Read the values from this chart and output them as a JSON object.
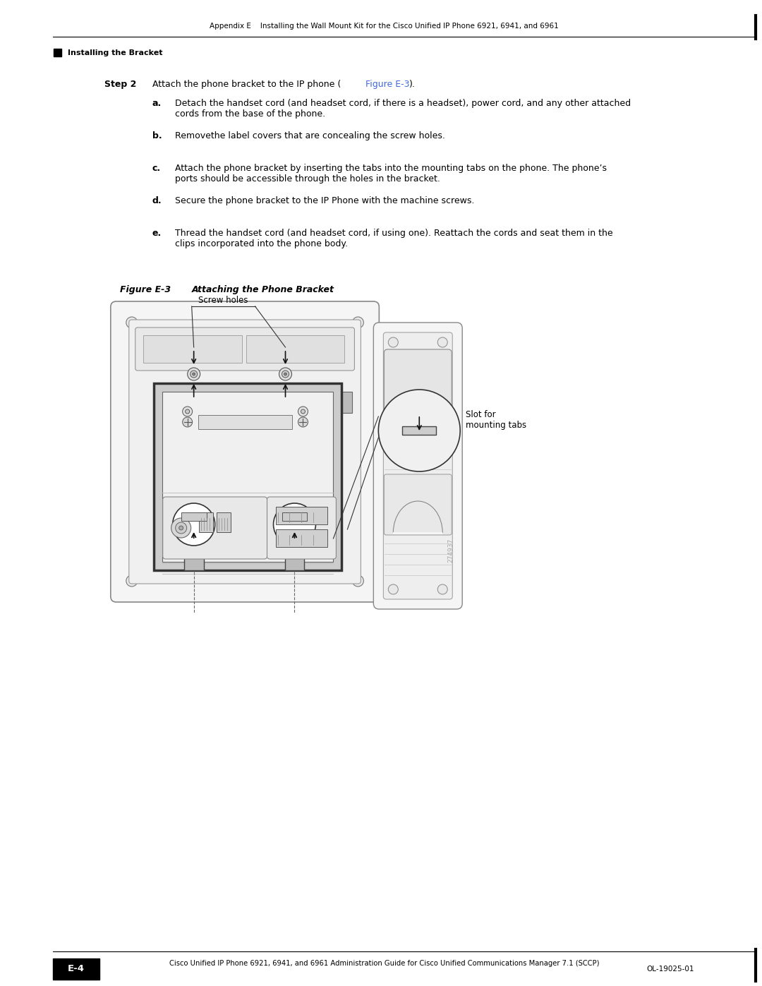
{
  "page_bg": "#ffffff",
  "header_text": "Appendix E    Installing the Wall Mount Kit for the Cisco Unified IP Phone 6921, 6941, and 6961",
  "subheader_text": "Installing the Bracket",
  "step_label": "Step 2",
  "step_text": "Attach the phone bracket to the IP phone (",
  "step_link": "Figure E-3",
  "step_text2": ").",
  "bullets": [
    {
      "label": "a.",
      "text": "Detach the handset cord (and headset cord, if there is a headset), power cord, and any other attached\ncords from the base of the phone."
    },
    {
      "label": "b.",
      "text": "Removethe label covers that are concealing the screw holes."
    },
    {
      "label": "c.",
      "text": "Attach the phone bracket by inserting the tabs into the mounting tabs on the phone. The phone’s\nports should be accessible through the holes in the bracket."
    },
    {
      "label": "d.",
      "text": "Secure the phone bracket to the IP Phone with the machine screws."
    },
    {
      "label": "e.",
      "text": "Thread the handset cord (and headset cord, if using one). Reattach the cords and seat them in the\nclips incorporated into the phone body."
    }
  ],
  "figure_label": "Figure E-3",
  "figure_title": "Attaching the Phone Bracket",
  "figure_number_watermark": "274937",
  "footer_text": "Cisco Unified IP Phone 6921, 6941, and 6961 Administration Guide for Cisco Unified Communications Manager 7.1 (SCCP)",
  "footer_page": "E-4",
  "footer_right": "OL-19025-01",
  "text_color": "#000000",
  "link_color": "#4169E1",
  "font_family": "DejaVu Sans"
}
